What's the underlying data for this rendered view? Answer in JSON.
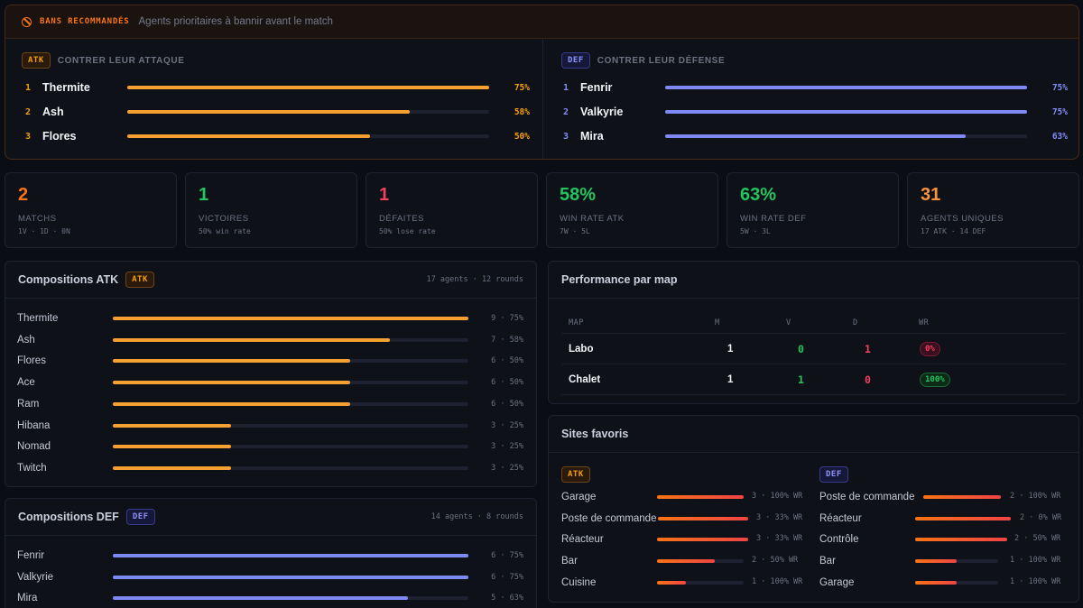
{
  "bans": {
    "title": "BANS RECOMMANDÉS",
    "subtitle": "Agents prioritaires à bannir avant le match",
    "atk": {
      "tag": "ATK",
      "label": "CONTRER LEUR ATTAQUE",
      "items": [
        {
          "rank": "1",
          "name": "Thermite",
          "pct": "75%",
          "value": 1.0
        },
        {
          "rank": "2",
          "name": "Ash",
          "pct": "58%",
          "value": 0.78
        },
        {
          "rank": "3",
          "name": "Flores",
          "pct": "50%",
          "value": 0.67
        }
      ]
    },
    "def": {
      "tag": "DEF",
      "label": "CONTRER LEUR DÉFENSE",
      "items": [
        {
          "rank": "1",
          "name": "Fenrir",
          "pct": "75%",
          "value": 1.0
        },
        {
          "rank": "2",
          "name": "Valkyrie",
          "pct": "75%",
          "value": 1.0
        },
        {
          "rank": "3",
          "name": "Mira",
          "pct": "63%",
          "value": 0.83
        }
      ]
    }
  },
  "stats": [
    {
      "value": "2",
      "label": "MATCHS",
      "sub": "1V · 1D · 0N",
      "color": "#f97316"
    },
    {
      "value": "1",
      "label": "VICTOIRES",
      "sub": "50% win rate",
      "color": "#22c55e"
    },
    {
      "value": "1",
      "label": "DÉFAITES",
      "sub": "50% lose rate",
      "color": "#f43f5e"
    },
    {
      "value": "58%",
      "label": "WIN RATE ATK",
      "sub": "7W · 5L",
      "color": "#22c55e"
    },
    {
      "value": "63%",
      "label": "WIN RATE DEF",
      "sub": "5W · 3L",
      "color": "#22c55e"
    },
    {
      "value": "31",
      "label": "AGENTS UNIQUES",
      "sub": "17 ATK · 14 DEF",
      "color": "#fb923c"
    }
  ],
  "comp_atk": {
    "title": "Compositions ATK",
    "tag": "ATK",
    "meta": "17 agents · 12 rounds",
    "items": [
      {
        "name": "Thermite",
        "val": "9 · 75%",
        "value": 1.0
      },
      {
        "name": "Ash",
        "val": "7 · 58%",
        "value": 0.78
      },
      {
        "name": "Flores",
        "val": "6 · 50%",
        "value": 0.667
      },
      {
        "name": "Ace",
        "val": "6 · 50%",
        "value": 0.667
      },
      {
        "name": "Ram",
        "val": "6 · 50%",
        "value": 0.667
      },
      {
        "name": "Hibana",
        "val": "3 · 25%",
        "value": 0.333
      },
      {
        "name": "Nomad",
        "val": "3 · 25%",
        "value": 0.333
      },
      {
        "name": "Twitch",
        "val": "3 · 25%",
        "value": 0.333
      }
    ]
  },
  "comp_def": {
    "title": "Compositions DEF",
    "tag": "DEF",
    "meta": "14 agents · 8 rounds",
    "items": [
      {
        "name": "Fenrir",
        "val": "6 · 75%",
        "value": 1.0
      },
      {
        "name": "Valkyrie",
        "val": "6 · 75%",
        "value": 1.0
      },
      {
        "name": "Mira",
        "val": "5 · 63%",
        "value": 0.83
      }
    ]
  },
  "maps": {
    "title": "Performance par map",
    "headers": [
      "MAP",
      "M",
      "V",
      "D",
      "WR"
    ],
    "rows": [
      {
        "map": "Labo",
        "m": "1",
        "v": "0",
        "d": "1",
        "wr": "0%",
        "good": false
      },
      {
        "map": "Chalet",
        "m": "1",
        "v": "1",
        "d": "0",
        "wr": "100%",
        "good": true
      }
    ]
  },
  "sites": {
    "title": "Sites favoris",
    "atk": {
      "tag": "ATK",
      "items": [
        {
          "name": "Garage",
          "val": "3 · 100% WR",
          "value": 1.0
        },
        {
          "name": "Poste de commande",
          "val": "3 · 33% WR",
          "value": 1.0
        },
        {
          "name": "Réacteur",
          "val": "3 · 33% WR",
          "value": 1.0
        },
        {
          "name": "Bar",
          "val": "2 · 50% WR",
          "value": 0.67
        },
        {
          "name": "Cuisine",
          "val": "1 · 100% WR",
          "value": 0.33
        }
      ]
    },
    "def": {
      "tag": "DEF",
      "items": [
        {
          "name": "Poste de commande",
          "val": "2 · 100% WR",
          "value": 1.0
        },
        {
          "name": "Réacteur",
          "val": "2 · 0% WR",
          "value": 1.0
        },
        {
          "name": "Contrôle",
          "val": "2 · 50% WR",
          "value": 1.0
        },
        {
          "name": "Bar",
          "val": "1 · 100% WR",
          "value": 0.5
        },
        {
          "name": "Garage",
          "val": "1 · 100% WR",
          "value": 0.5
        }
      ]
    }
  }
}
